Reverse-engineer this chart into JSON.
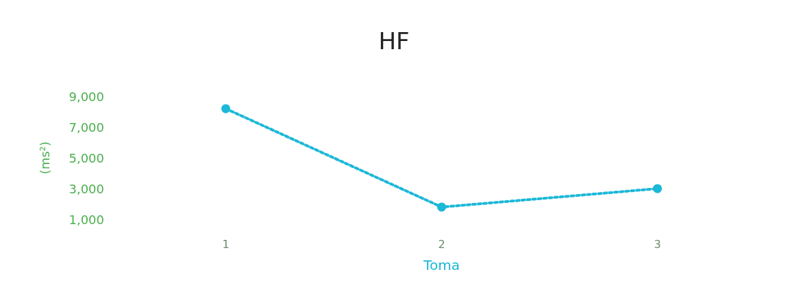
{
  "chart_data": {
    "type": "line",
    "title": "HF",
    "xlabel": "Toma",
    "ylabel": "(ms²)",
    "categories": [
      "1",
      "2",
      "3"
    ],
    "series": [
      {
        "color": "#1cb8d8",
        "values": [
          8200,
          1800,
          3000
        ]
      }
    ],
    "ylim": [
      1000,
      9000
    ],
    "yticks": [
      {
        "value": 1000,
        "label": "1,000"
      },
      {
        "value": 3000,
        "label": "3,000"
      },
      {
        "value": 5000,
        "label": "5,000"
      },
      {
        "value": 7000,
        "label": "7,000"
      },
      {
        "value": 9000,
        "label": "9,000"
      }
    ],
    "grid": false,
    "marker": "circle",
    "line_style": "dotted"
  }
}
